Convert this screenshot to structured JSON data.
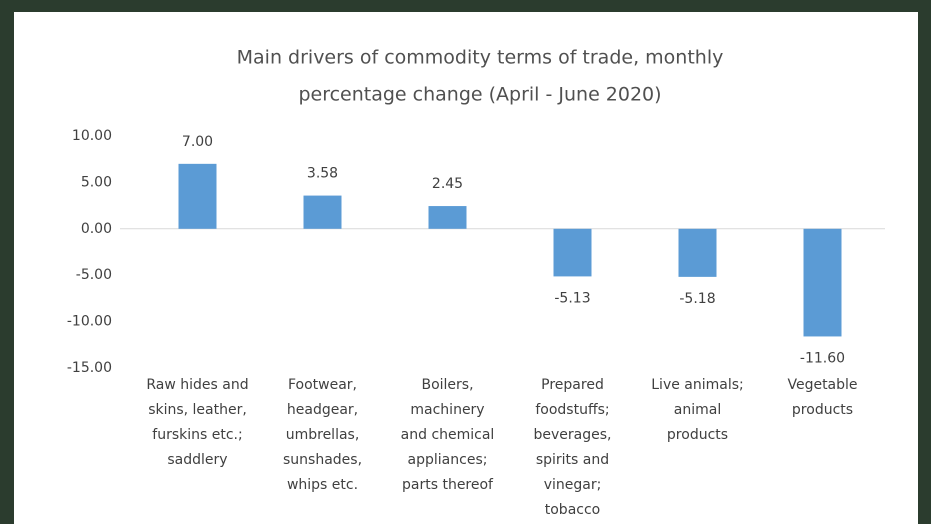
{
  "chart_data": {
    "type": "bar",
    "title": [
      "Main drivers of commodity terms of trade, monthly",
      "percentage change (April - June 2020)"
    ],
    "categories": [
      [
        "Raw hides and",
        "skins, leather,",
        "furskins etc.;",
        "saddlery"
      ],
      [
        "Footwear,",
        "headgear,",
        "umbrellas,",
        "sunshades,",
        "whips etc."
      ],
      [
        "Boilers,",
        "machinery",
        "and chemical",
        "appliances;",
        "parts thereof"
      ],
      [
        "Prepared",
        "foodstuffs;",
        "beverages,",
        "spirits and",
        "vinegar;",
        "tobacco"
      ],
      [
        "Live animals;",
        "animal",
        "products"
      ],
      [
        "Vegetable",
        "products"
      ]
    ],
    "values": [
      7.0,
      3.58,
      2.45,
      -5.13,
      -5.18,
      -11.6
    ],
    "value_labels": [
      "7.00",
      "3.58",
      "2.45",
      "-5.13",
      "-5.18",
      "-11.60"
    ],
    "color": "#5b9bd5",
    "ylim": [
      -15,
      10
    ],
    "yticks": [
      {
        "value": 10,
        "label": "10.00"
      },
      {
        "value": 5,
        "label": "5.00"
      },
      {
        "value": 0,
        "label": "0.00"
      },
      {
        "value": -5,
        "label": "-5.00"
      },
      {
        "value": -10,
        "label": "-10.00"
      },
      {
        "value": -15,
        "label": "-15.00"
      }
    ],
    "grid": false
  }
}
